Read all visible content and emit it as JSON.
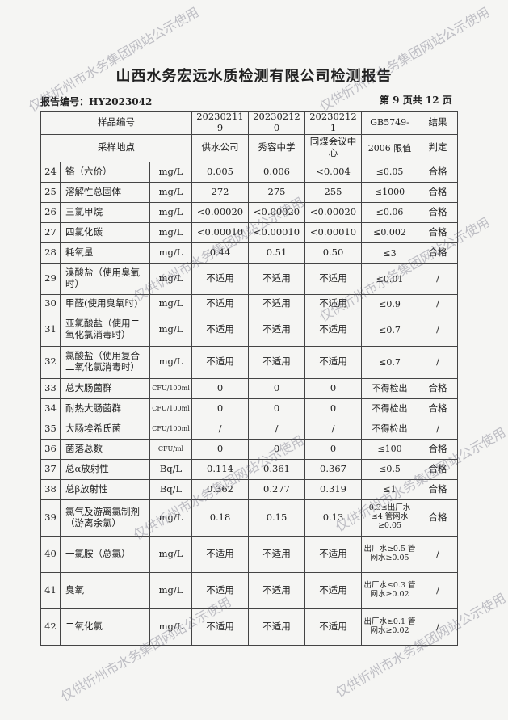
{
  "title": "山西水务宏远水质检测有限公司检测报告",
  "report_no": "报告编号：HY2023042",
  "page": "第 9 页共 12 页",
  "header": {
    "sample_no_label": "样品编号",
    "site_label": "采样地点",
    "samples": [
      {
        "no": "202302119",
        "site": "供水公司"
      },
      {
        "no": "202302120",
        "site": "秀容中学"
      },
      {
        "no": "202302121",
        "site": "同煤会议中心"
      }
    ],
    "limit_label_1": "GB5749-",
    "limit_label_2": "2006 限值",
    "result_label_1": "结果",
    "result_label_2": "判定"
  },
  "rows": [
    {
      "n": "24",
      "name": "铬（六价）",
      "unit": "mg/L",
      "v": [
        "0.005",
        "0.006",
        "<0.004"
      ],
      "limit": "≤0.05",
      "result": "合格"
    },
    {
      "n": "25",
      "name": "溶解性总固体",
      "unit": "mg/L",
      "v": [
        "272",
        "275",
        "255"
      ],
      "limit": "≤1000",
      "result": "合格"
    },
    {
      "n": "26",
      "name": "三氯甲烷",
      "unit": "mg/L",
      "v": [
        "<0.00020",
        "<0.00020",
        "<0.00020"
      ],
      "limit": "≤0.06",
      "result": "合格"
    },
    {
      "n": "27",
      "name": "四氯化碳",
      "unit": "mg/L",
      "v": [
        "<0.00010",
        "<0.00010",
        "<0.00010"
      ],
      "limit": "≤0.002",
      "result": "合格"
    },
    {
      "n": "28",
      "name": "耗氧量",
      "unit": "mg/L",
      "v": [
        "0.44",
        "0.51",
        "0.50"
      ],
      "limit": "≤3",
      "result": "合格"
    },
    {
      "n": "29",
      "name": "溴酸盐（使用臭氧时）",
      "unit": "mg/L",
      "v": [
        "不适用",
        "不适用",
        "不适用"
      ],
      "limit": "≤0.01",
      "result": "/"
    },
    {
      "n": "30",
      "name": "甲醛(使用臭氧时)",
      "unit": "mg/L",
      "v": [
        "不适用",
        "不适用",
        "不适用"
      ],
      "limit": "≤0.9",
      "result": "/"
    },
    {
      "n": "31",
      "name": "亚氯酸盐（使用二氧化氯消毒时）",
      "unit": "mg/L",
      "v": [
        "不适用",
        "不适用",
        "不适用"
      ],
      "limit": "≤0.7",
      "result": "/"
    },
    {
      "n": "32",
      "name": "氯酸盐（使用复合二氧化氯消毒时）",
      "unit": "mg/L",
      "v": [
        "不适用",
        "不适用",
        "不适用"
      ],
      "limit": "≤0.7",
      "result": "/"
    },
    {
      "n": "33",
      "name": "总大肠菌群",
      "unit": "CFU/100ml",
      "v": [
        "0",
        "0",
        "0"
      ],
      "limit": "不得检出",
      "result": "合格"
    },
    {
      "n": "34",
      "name": "耐热大肠菌群",
      "unit": "CFU/100ml",
      "v": [
        "0",
        "0",
        "0"
      ],
      "limit": "不得检出",
      "result": "合格"
    },
    {
      "n": "35",
      "name": "大肠埃希氏菌",
      "unit": "CFU/100ml",
      "v": [
        "/",
        "/",
        "/"
      ],
      "limit": "不得检出",
      "result": "/"
    },
    {
      "n": "36",
      "name": "菌落总数",
      "unit": "CFU/ml",
      "v": [
        "0",
        "0",
        "0"
      ],
      "limit": "≤100",
      "result": "合格"
    },
    {
      "n": "37",
      "name": "总α放射性",
      "unit": "Bq/L",
      "v": [
        "0.114",
        "0.361",
        "0.367"
      ],
      "limit": "≤0.5",
      "result": "合格"
    },
    {
      "n": "38",
      "name": "总β放射性",
      "unit": "Bq/L",
      "v": [
        "0.362",
        "0.277",
        "0.319"
      ],
      "limit": "≤1",
      "result": "合格"
    },
    {
      "n": "39",
      "name": "氯气及游离氯制剂（游离余氯）",
      "unit": "mg/L",
      "v": [
        "0.18",
        "0.15",
        "0.13"
      ],
      "limit": "0.3≤出厂水≤4 管网水≥0.05",
      "result": "合格"
    },
    {
      "n": "40",
      "name": "一氯胺（总氯）",
      "unit": "mg/L",
      "v": [
        "不适用",
        "不适用",
        "不适用"
      ],
      "limit": "出厂水≥0.5 管网水≥0.05",
      "result": "/"
    },
    {
      "n": "41",
      "name": "臭氧",
      "unit": "mg/L",
      "v": [
        "不适用",
        "不适用",
        "不适用"
      ],
      "limit": "出厂水≤0.3 管网水≥0.02",
      "result": "/"
    },
    {
      "n": "42",
      "name": "二氧化氯",
      "unit": "mg/L",
      "v": [
        "不适用",
        "不适用",
        "不适用"
      ],
      "limit": "出厂水≥0.1 管网水≥0.02",
      "result": "/"
    }
  ],
  "watermark": "仅供忻州市水务集团网站公示使用"
}
